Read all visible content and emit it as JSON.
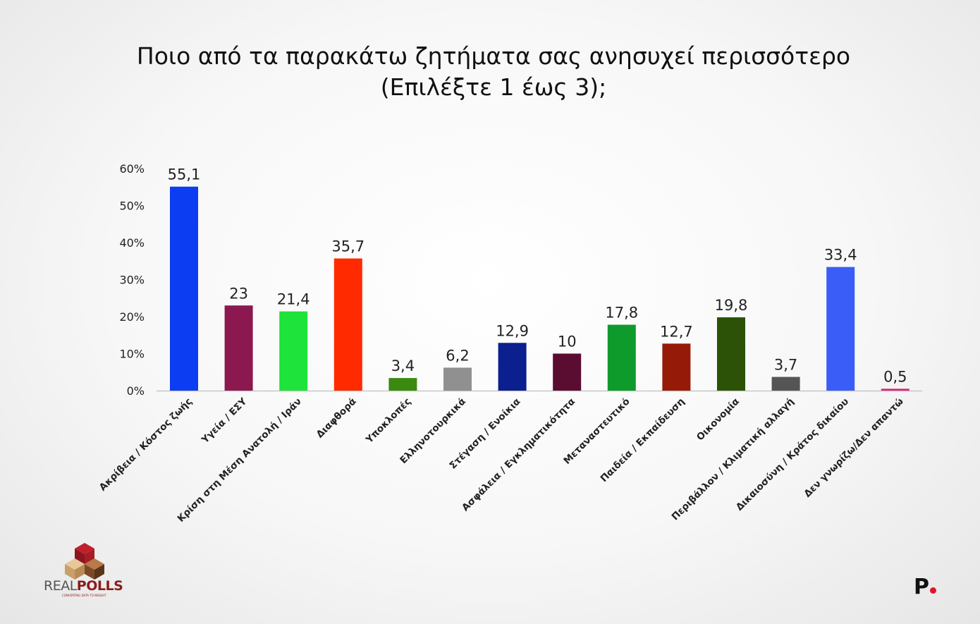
{
  "title": {
    "line1": "Ποιο από τα παρακάτω ζητήματα σας ανησυχεί περισσότερο",
    "line2": "(Επιλέξτε 1 έως 3);"
  },
  "chart_data": {
    "type": "bar",
    "categories": [
      "Ακρίβεια / Κόστος ζωής",
      "Υγεία / ΕΣΥ",
      "Κρίση στη Μέση Ανατολή / Ιράν",
      "Διαφθορά",
      "Υποκλοπές",
      "Ελληνοτουρκικά",
      "Στέγαση / Ενοίκια",
      "Ασφάλεια / Εγκληματικότητα",
      "Μεταναστευτικό",
      "Παιδεία / Εκπαίδευση",
      "Οικονομία",
      "Περιβάλλον / Κλιματική αλλαγή",
      "Δικαιοσύνη / Κράτος δικαίου",
      "Δεν γνωρίζω/Δεν απαντώ"
    ],
    "values": [
      55.1,
      23,
      21.4,
      35.7,
      3.4,
      6.2,
      12.9,
      10,
      17.8,
      12.7,
      19.8,
      3.7,
      33.4,
      0.5
    ],
    "value_labels": [
      "55,1",
      "23",
      "21,4",
      "35,7",
      "3,4",
      "6,2",
      "12,9",
      "10",
      "17,8",
      "12,7",
      "19,8",
      "3,7",
      "33,4",
      "0,5"
    ],
    "colors": [
      "#0d3df2",
      "#8c1850",
      "#1ee33a",
      "#ff2a00",
      "#3a8a10",
      "#909090",
      "#0b1f8f",
      "#5a0d30",
      "#0f9a2c",
      "#951a08",
      "#2b5206",
      "#555555",
      "#3b5df7",
      "#e0206e"
    ],
    "ylim": [
      0,
      60
    ],
    "yticks": [
      0,
      10,
      20,
      30,
      40,
      50,
      60
    ],
    "ytick_labels": [
      "0%",
      "10%",
      "20%",
      "30%",
      "40%",
      "50%",
      "60%"
    ],
    "grid": false,
    "legend": "none"
  },
  "branding": {
    "left_brand_light": "REAL",
    "left_brand_bold": "POLLS",
    "left_tagline": "CONVERTING DATA TO INSIGHT",
    "right_logo": "P"
  }
}
